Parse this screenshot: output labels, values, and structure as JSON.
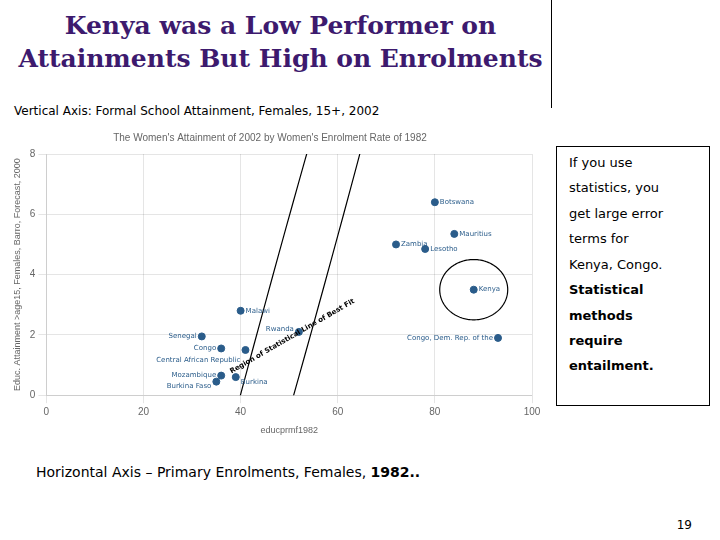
{
  "chart_data": {
    "type": "scatter",
    "title": [
      "Kenya was a Low Performer on",
      "Attainments But High on Enrolments"
    ],
    "subtitle": "Vertical Axis:  Formal School Attainment, Females, 15+, 2002",
    "chart_title": "The Women's Attainment of 2002 by Women's Enrolment Rate of 1982",
    "xlabel": "educprmf1982",
    "ylabel": "Educ. Attainment >age15, Females, Barro, Forecast, 2000",
    "point_labels": [
      "Botswana",
      "Mauritius",
      "Zambia",
      "Lesotho",
      "Kenya",
      "Malawi",
      "Senegal",
      "Congo",
      "Central African Republic",
      "Rwanda",
      "Congo, Dem. Rep. of the",
      "Mozambique",
      "Burkina",
      "Burkina Faso"
    ],
    "x": [
      80,
      84,
      72,
      78,
      88,
      40,
      32,
      36,
      41,
      52,
      93,
      36,
      39,
      35
    ],
    "values": [
      6.4,
      5.35,
      5.0,
      4.85,
      3.5,
      2.8,
      1.95,
      1.55,
      1.5,
      2.1,
      1.9,
      0.65,
      0.6,
      0.45
    ],
    "color": "#2A5C8A",
    "xlim": [
      0,
      100
    ],
    "ylim": [
      0,
      8
    ],
    "xticks": [
      0,
      20,
      40,
      60,
      80,
      100
    ],
    "yticks": [
      0,
      2,
      4,
      6,
      8
    ],
    "grid": true,
    "ellipses": [
      {
        "cx": 52,
        "cy": 3.85,
        "width": 88,
        "height": 5.6,
        "angle": 30
      },
      {
        "cx": 88,
        "cy": 3.5,
        "width": 14,
        "height": 2.0,
        "angle": 0
      }
    ],
    "annotations": [
      {
        "text": "Region of Statistical Line of Best Fit",
        "x": 51,
        "y": 1.85
      }
    ],
    "note": [
      "If you use",
      "statistics, you",
      "get large error",
      "terms for",
      "Kenya, Congo."
    ],
    "note_bold": [
      "Statistical",
      "methods",
      "require",
      "entailment."
    ],
    "footer": [
      "Horizontal Axis – Primary Enrolments, Females,",
      "1982.."
    ],
    "page_number": "19"
  }
}
